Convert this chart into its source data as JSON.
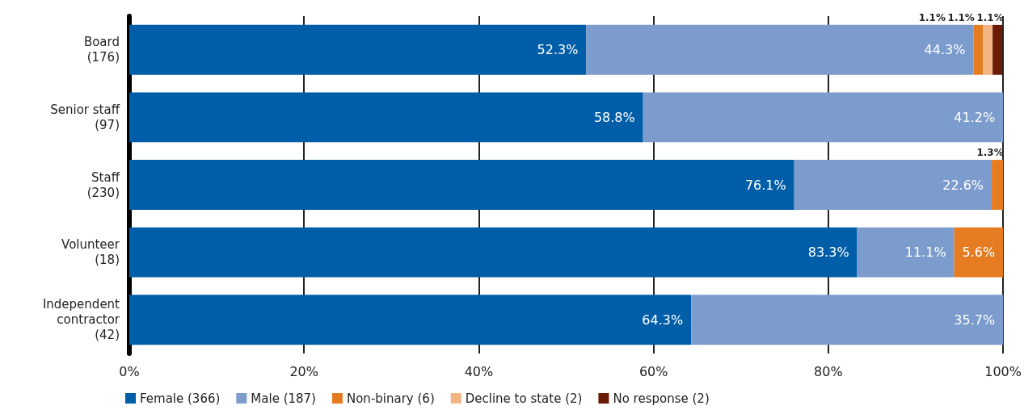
{
  "chart_data": {
    "type": "bar",
    "orientation": "horizontal",
    "stacked": true,
    "categories": [
      "Board\n(176)",
      "Senior staff\n(97)",
      "Staff\n(230)",
      "Volunteer\n(18)",
      "Independent\ncontractor\n(42)"
    ],
    "series": [
      {
        "name": "Female (366)",
        "color": "#005ea8",
        "values": [
          52.3,
          58.8,
          76.1,
          83.3,
          64.3
        ],
        "value_labels": [
          "52.3%",
          "58.8%",
          "76.1%",
          "83.3%",
          "64.3%"
        ]
      },
      {
        "name": "Male (187)",
        "color": "#7b9ccc",
        "values": [
          44.3,
          41.2,
          22.6,
          11.1,
          35.7
        ],
        "value_labels": [
          "44.3%",
          "41.2%",
          "22.6%",
          "11.1%",
          "35.7%"
        ]
      },
      {
        "name": "Non-binary (6)",
        "color": "#e57c22",
        "values": [
          1.1,
          null,
          1.3,
          5.6,
          null
        ],
        "value_labels": [
          "1.1%",
          null,
          "1.3%",
          "5.6%",
          null
        ]
      },
      {
        "name": "Decline to state (2)",
        "color": "#f2b482",
        "values": [
          1.1,
          null,
          null,
          null,
          null
        ],
        "value_labels": [
          "1.1%",
          null,
          null,
          null,
          null
        ]
      },
      {
        "name": "No response (2)",
        "color": "#6b1a05",
        "values": [
          1.1,
          null,
          null,
          null,
          null
        ],
        "value_labels": [
          "1.1%",
          null,
          null,
          null,
          null
        ]
      }
    ],
    "xlim": [
      0,
      100
    ],
    "xticks": [
      {
        "value": 0,
        "label": "0%"
      },
      {
        "value": 20,
        "label": "20%"
      },
      {
        "value": 40,
        "label": "40%"
      },
      {
        "value": 60,
        "label": "60%"
      },
      {
        "value": 80,
        "label": "80%"
      },
      {
        "value": 100,
        "label": "100%"
      }
    ],
    "grid": "x",
    "legend": "bottom left"
  }
}
